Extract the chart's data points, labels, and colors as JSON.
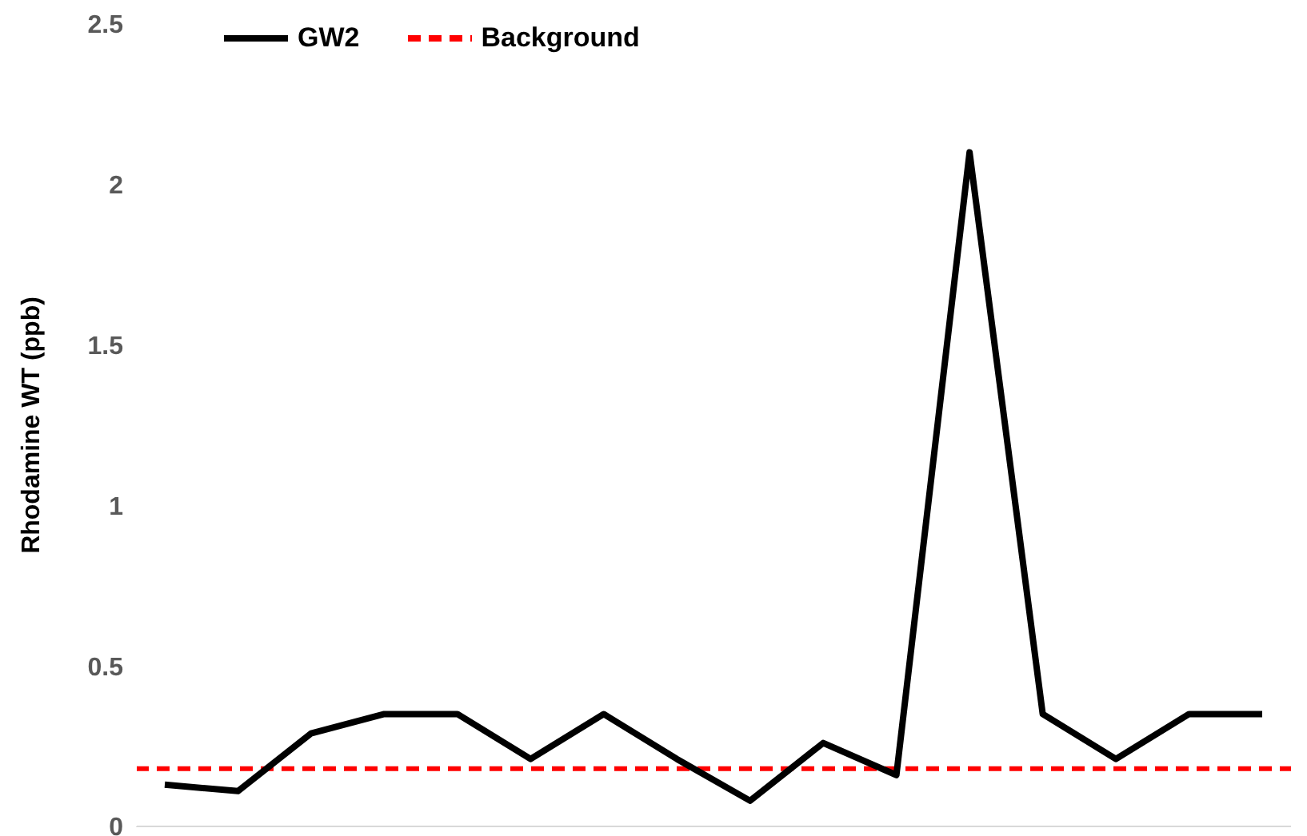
{
  "chart_data": {
    "type": "line",
    "ylabel": "Rhodamine WT (ppb)",
    "categories": [
      null,
      null,
      null,
      null,
      null,
      null,
      null,
      null,
      null,
      null,
      null,
      null,
      null,
      null,
      null,
      null
    ],
    "series": [
      {
        "name": "GW2",
        "color": "#000000",
        "values": [
          0.13,
          0.11,
          0.29,
          0.35,
          0.35,
          0.21,
          0.35,
          0.21,
          0.08,
          0.26,
          0.16,
          2.1,
          0.35,
          0.21,
          0.35,
          0.35
        ]
      }
    ],
    "ref_lines": [
      {
        "axis": "y",
        "value": 0.18,
        "label": "Background",
        "color": "#ff0000",
        "line_style": "dashed"
      }
    ],
    "ylim": [
      0,
      2.5
    ],
    "yticks": [
      0,
      0.5,
      1,
      1.5,
      2,
      2.5
    ],
    "grid": false,
    "legend": "top left",
    "marker": "none",
    "line_style": "solid",
    "tick_labels": "y"
  }
}
